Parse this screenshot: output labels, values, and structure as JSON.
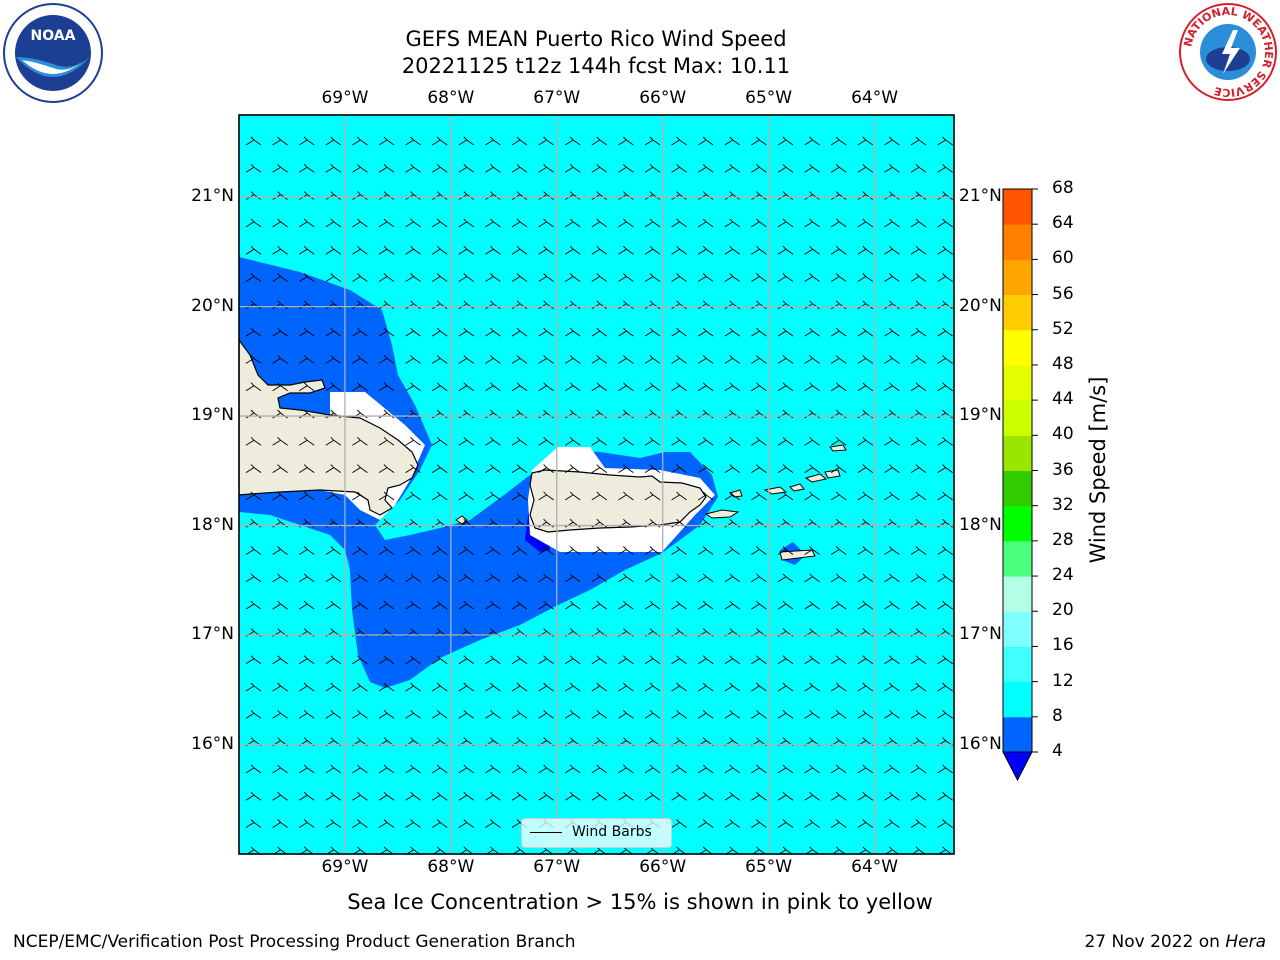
{
  "title": {
    "line1": "GEFS MEAN Puerto Rico Wind Speed",
    "line2": "20221125 t12z 144h fcst   Max: 10.11"
  },
  "subtitle": "Sea Ice Concentration > 15% is shown in pink to yellow",
  "footer": {
    "left": "NCEP/EMC/Verification Post Processing Product Generation Branch",
    "right_date": "27 Nov 2022 on ",
    "right_machine": "Hera"
  },
  "map": {
    "lon_ticks": [
      "69°W",
      "68°W",
      "67°W",
      "66°W",
      "65°W",
      "64°W"
    ],
    "lon_values": [
      -69,
      -68,
      -67,
      -66,
      -65,
      -64
    ],
    "lat_ticks": [
      "21°N",
      "20°N",
      "19°N",
      "18°N",
      "17°N",
      "16°N"
    ],
    "lat_values": [
      21,
      20,
      19,
      18,
      17,
      16
    ],
    "lon_range": [
      -70,
      -63.25
    ],
    "lat_range": [
      15,
      21.75
    ],
    "grid": true,
    "ocean_color": "#00ffff",
    "land_color": "#eeecdc",
    "legend_label": "Wind Barbs"
  },
  "colorbar": {
    "label": "Wind Speed [m/s]",
    "ticks": [
      "68",
      "64",
      "60",
      "56",
      "52",
      "48",
      "44",
      "40",
      "36",
      "32",
      "28",
      "24",
      "20",
      "16",
      "12",
      "8",
      "4"
    ],
    "levels": [
      4,
      8,
      12,
      16,
      20,
      24,
      28,
      32,
      36,
      40,
      44,
      48,
      52,
      56,
      60,
      64,
      68
    ],
    "colors": [
      "#0064ff",
      "#00ffff",
      "#40ffff",
      "#7fffff",
      "#b3ffe6",
      "#4cff7f",
      "#00ff00",
      "#33cc00",
      "#9be600",
      "#ccff00",
      "#e6ff00",
      "#ffff00",
      "#ffcc00",
      "#ffa500",
      "#ff8000",
      "#ff5500",
      "#ff2a00",
      "#ff0000"
    ],
    "extend_color": "#0000ff"
  },
  "logos": {
    "noaa": "NOAA",
    "nws_ring": "NATIONAL WEATHER SERVICE"
  }
}
